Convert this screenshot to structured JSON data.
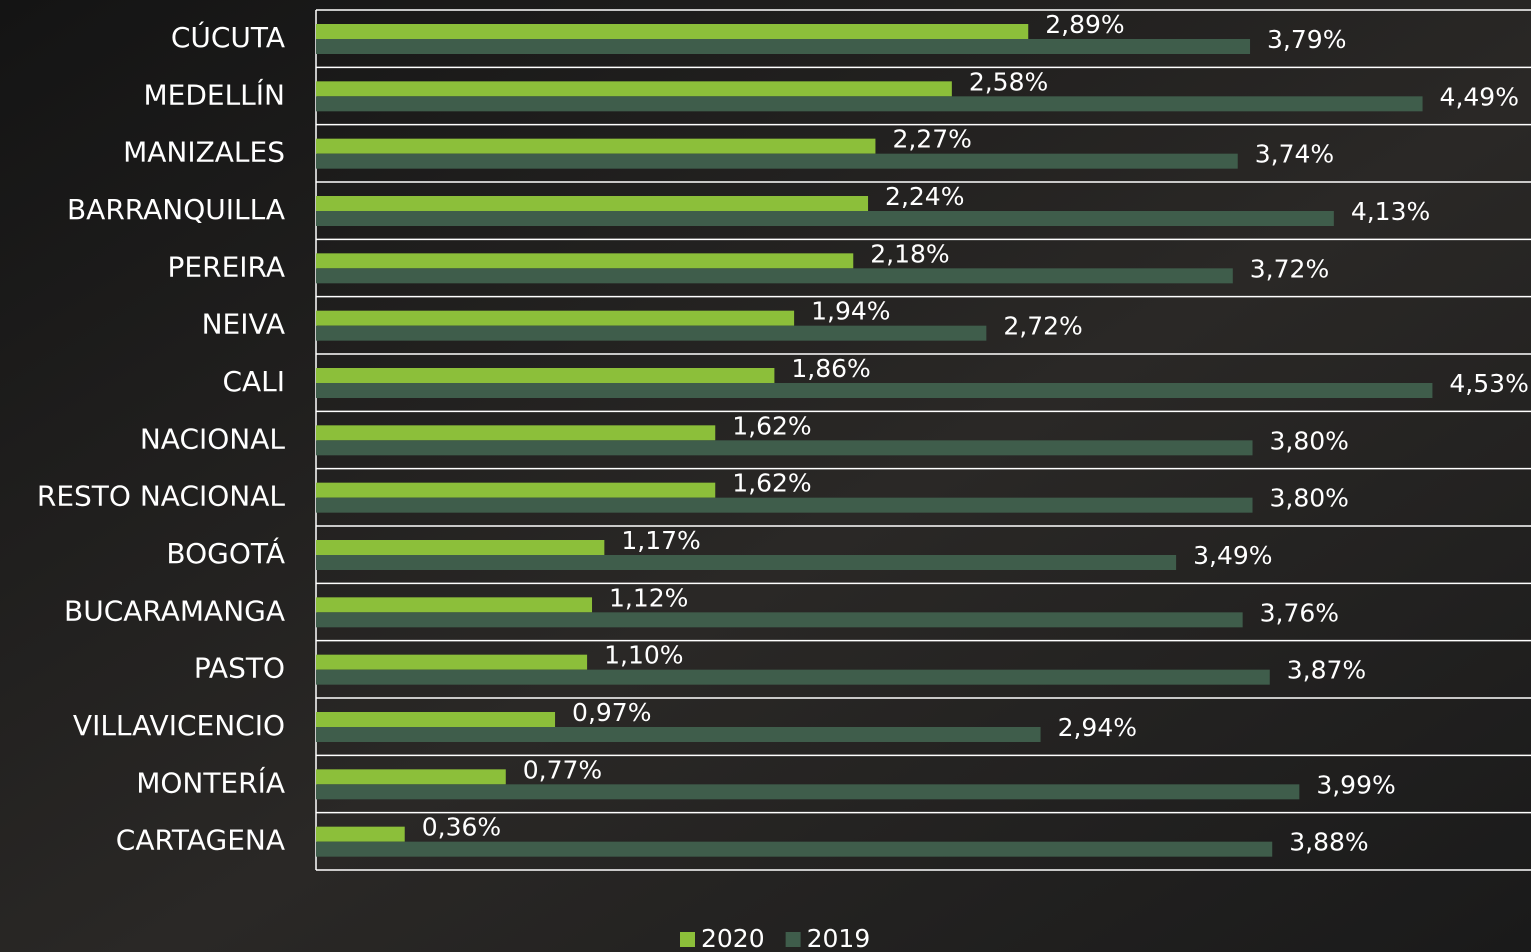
{
  "chart_data": {
    "type": "bar",
    "orientation": "horizontal",
    "categories": [
      "CÚCUTA",
      "MEDELLÍN",
      "MANIZALES",
      "BARRANQUILLA",
      "PEREIRA",
      "NEIVA",
      "CALI",
      "NACIONAL",
      "RESTO NACIONAL",
      "BOGOTÁ",
      "BUCARAMANGA",
      "PASTO",
      "VILLAVICENCIO",
      "MONTERÍA",
      "CARTAGENA"
    ],
    "series": [
      {
        "name": "2020",
        "color": "#8cbf3a",
        "values": [
          2.89,
          2.58,
          2.27,
          2.24,
          2.18,
          1.94,
          1.86,
          1.62,
          1.62,
          1.17,
          1.12,
          1.1,
          0.97,
          0.77,
          0.36
        ],
        "value_labels": [
          "2,89%",
          "2,58%",
          "2,27%",
          "2,24%",
          "2,18%",
          "1,94%",
          "1,86%",
          "1,62%",
          "1,62%",
          "1,17%",
          "1,12%",
          "1,10%",
          "0,97%",
          "0,77%",
          "0,36%"
        ]
      },
      {
        "name": "2019",
        "color": "#3f5d4b",
        "values": [
          3.79,
          4.49,
          3.74,
          4.13,
          3.72,
          2.72,
          4.53,
          3.8,
          3.8,
          3.49,
          3.76,
          3.87,
          2.94,
          3.99,
          3.88
        ],
        "value_labels": [
          "3,79%",
          "4,49%",
          "3,74%",
          "4,13%",
          "3,72%",
          "2,72%",
          "4,53%",
          "3,80%",
          "3,80%",
          "3,49%",
          "3,76%",
          "3,87%",
          "2,94%",
          "3,99%",
          "3,88%"
        ]
      }
    ],
    "xlim": [
      0,
      4.93
    ],
    "legend": "bottom"
  }
}
